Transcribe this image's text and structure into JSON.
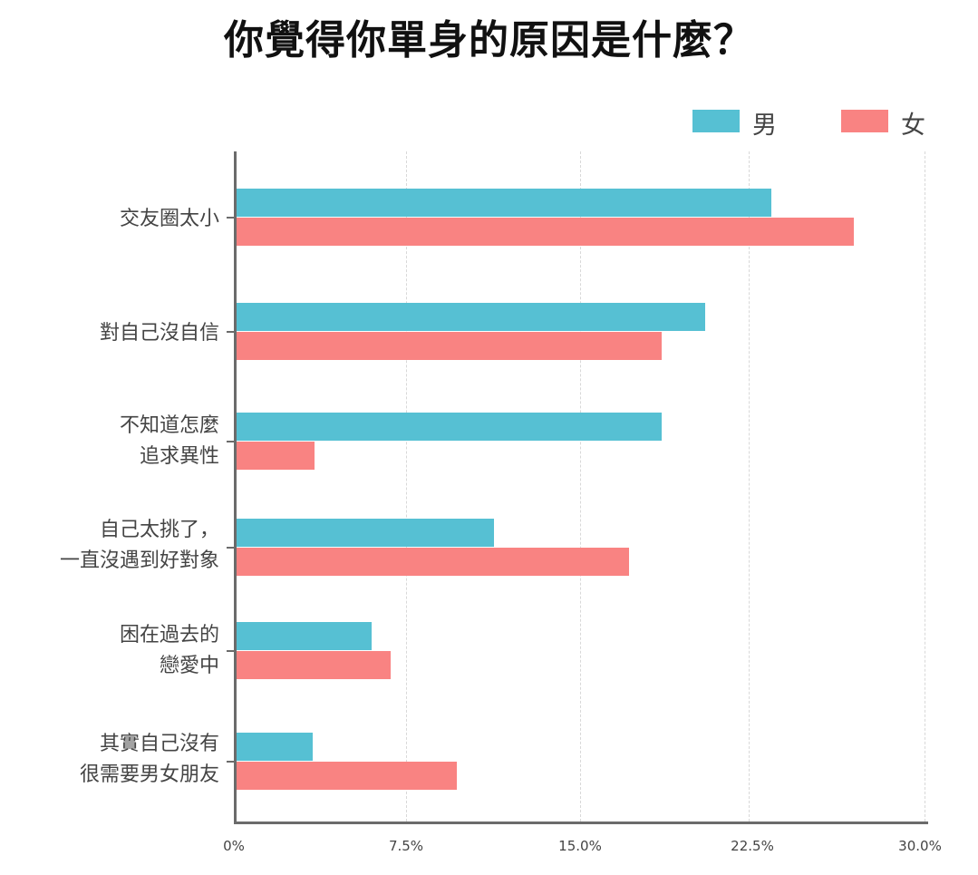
{
  "chart_data": {
    "type": "bar",
    "orientation": "horizontal",
    "title": "你覺得你單身的原因是什麼？",
    "xlabel": "",
    "ylabel": "",
    "xlim": [
      0,
      30
    ],
    "x_ticks": [
      "0%",
      "7.5%",
      "15.0%",
      "22.5%",
      "30.0%"
    ],
    "x_tick_values": [
      0,
      7.5,
      15,
      22.5,
      30
    ],
    "grid": "vertical dashed",
    "legend_position": "top-right",
    "categories": [
      "交友圈太小",
      "對自己沒自信",
      "不知道怎麼\n追求異性",
      "自己太挑了，\n一直沒遇到好對象",
      "困在過去的\n戀愛中",
      "其實自己沒有\n很需要男女朋友"
    ],
    "series": [
      {
        "name": "男",
        "color": "#56c0d3",
        "values": [
          23.3,
          20.4,
          18.5,
          11.2,
          5.9,
          3.3
        ]
      },
      {
        "name": "女",
        "color": "#f98382",
        "values": [
          26.9,
          18.5,
          3.4,
          17.1,
          6.7,
          9.6
        ]
      }
    ]
  },
  "title": "你覺得你單身的原因是什麼？",
  "legend": {
    "male": "男",
    "female": "女"
  },
  "x_axis": {
    "ticks": [
      "0%",
      "7.5%",
      "15.0%",
      "22.5%",
      "30.0%"
    ]
  },
  "rows": [
    {
      "label": "交友圈太小"
    },
    {
      "label": "對自己沒自信"
    },
    {
      "label": "不知道怎麼\n追求異性"
    },
    {
      "label": "自己太挑了，\n一直沒遇到好對象"
    },
    {
      "label": "困在過去的\n戀愛中"
    },
    {
      "label": "其實自己沒有\n很需要男女朋友"
    }
  ]
}
